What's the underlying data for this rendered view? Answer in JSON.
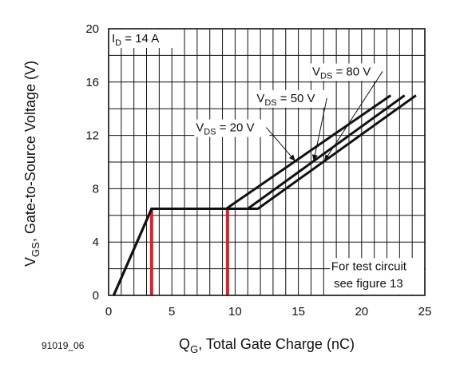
{
  "figure_id": "91019_06",
  "chart_data": {
    "type": "line",
    "title": "",
    "xlabel_main": "Q",
    "xlabel_sub": "G",
    "xlabel_rest": ", Total Gate Charge (nC)",
    "ylabel_main": "V",
    "ylabel_sub": "GS",
    "ylabel_rest": ", Gate-to-Source Voltage (V)",
    "xlim": [
      0,
      25
    ],
    "ylim": [
      0,
      20
    ],
    "xticks": [
      0,
      5,
      10,
      15,
      20,
      25
    ],
    "yticks": [
      0,
      4,
      8,
      12,
      16,
      20
    ],
    "grid": true,
    "condition_main": "I",
    "condition_sub": "D",
    "condition_rest": " = 14 A",
    "note_line1": "For test circuit",
    "note_line2": "see figure 13",
    "series": [
      {
        "name_main": "V",
        "name_sub": "DS",
        "name_rest": " = 20 V",
        "x": [
          0.4,
          3.4,
          9.3,
          22.3
        ],
        "y": [
          0,
          6.5,
          6.5,
          15
        ]
      },
      {
        "name_main": "V",
        "name_sub": "DS",
        "name_rest": " = 50 V",
        "x": [
          0.4,
          3.4,
          11.0,
          23.4
        ],
        "y": [
          0,
          6.5,
          6.5,
          15
        ]
      },
      {
        "name_main": "V",
        "name_sub": "DS",
        "name_rest": " = 80 V",
        "x": [
          0.4,
          3.4,
          11.8,
          24.3
        ],
        "y": [
          0,
          6.5,
          6.5,
          15
        ]
      }
    ],
    "markers": [
      {
        "name": "qgs-marker",
        "x": 3.4,
        "y": [
          0,
          6.5
        ],
        "color": "#e41e26"
      },
      {
        "name": "qgd-marker",
        "x": 9.4,
        "y": [
          0,
          6.5
        ],
        "color": "#e41e26"
      }
    ],
    "colors": {
      "curve": "#111111",
      "grid": "#111111",
      "marker": "#e41e26"
    }
  }
}
